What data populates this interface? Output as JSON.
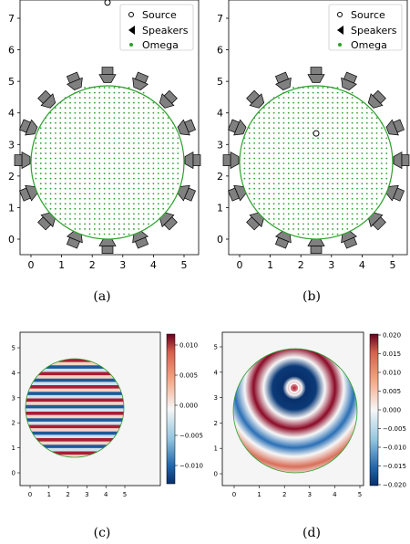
{
  "panels": [
    {
      "label": "(a)",
      "legend": [
        "Source",
        "Speakers",
        "Omega"
      ],
      "x_ticks": [
        "0",
        "1",
        "2",
        "3",
        "4",
        "5"
      ],
      "y_ticks": [
        "0",
        "1",
        "2",
        "3",
        "4",
        "5",
        "6",
        "7"
      ]
    },
    {
      "label": "(b)",
      "legend": [
        "Source",
        "Speakers",
        "Omega"
      ],
      "x_ticks": [
        "0",
        "1",
        "2",
        "3",
        "4",
        "5"
      ],
      "y_ticks": [
        "0",
        "1",
        "2",
        "3",
        "4",
        "5",
        "6",
        "7"
      ]
    },
    {
      "label": "(c)",
      "x_ticks": [
        "0",
        "1",
        "2",
        "3",
        "4",
        "5"
      ],
      "y_ticks": [
        "0",
        "1",
        "2",
        "3",
        "4",
        "5"
      ],
      "colorbar_ticks": [
        "0.010",
        "0.005",
        "0.000",
        "−0.005",
        "−0.010"
      ]
    },
    {
      "label": "(d)",
      "x_ticks": [
        "0",
        "1",
        "2",
        "3",
        "4",
        "5"
      ],
      "y_ticks": [
        "0",
        "1",
        "2",
        "3",
        "4",
        "5"
      ],
      "colorbar_ticks": [
        "0.020",
        "0.015",
        "0.010",
        "0.005",
        "0.000",
        "−0.005",
        "−0.010",
        "−0.015",
        "−0.020"
      ]
    }
  ],
  "chart_data": [
    {
      "type": "scatter",
      "panel": "(a)",
      "xlim": [
        -0.5,
        5.5
      ],
      "ylim": [
        -0.5,
        7.7
      ],
      "domain_center": [
        2.5,
        2.5
      ],
      "domain_radius": 2.5,
      "series": [
        {
          "name": "Source",
          "points": [
            [
              2.5,
              7.5
            ]
          ],
          "color": "#000000"
        },
        {
          "name": "Speakers",
          "count": 16,
          "ring_radius": 2.6,
          "color": "#808080"
        },
        {
          "name": "Omega",
          "grid_spacing": 0.16,
          "color": "#2ca02c"
        }
      ],
      "legend_position": "upper right"
    },
    {
      "type": "scatter",
      "panel": "(b)",
      "xlim": [
        -0.5,
        5.5
      ],
      "ylim": [
        -0.5,
        7.7
      ],
      "domain_center": [
        2.5,
        2.5
      ],
      "domain_radius": 2.5,
      "series": [
        {
          "name": "Source",
          "points": [
            [
              2.5,
              3.35
            ]
          ],
          "color": "#000000"
        },
        {
          "name": "Speakers",
          "count": 16,
          "ring_radius": 2.6,
          "color": "#808080"
        },
        {
          "name": "Omega",
          "grid_spacing": 0.16,
          "color": "#2ca02c"
        }
      ],
      "legend_position": "upper right"
    },
    {
      "type": "heatmap",
      "panel": "(c)",
      "xlim": [
        -0.5,
        5.5
      ],
      "ylim": [
        -0.5,
        5.5
      ],
      "domain_center": [
        2.5,
        2.5
      ],
      "domain_radius": 2.5,
      "field": "plane wave, horizontal stripes",
      "wave_period_y": 0.75,
      "colormap": "RdBu_r",
      "vmin": -0.013,
      "vmax": 0.013
    },
    {
      "type": "heatmap",
      "panel": "(d)",
      "xlim": [
        -0.5,
        5.5
      ],
      "ylim": [
        -0.5,
        5.5
      ],
      "domain_center": [
        2.5,
        2.5
      ],
      "domain_radius": 2.5,
      "field": "point source, concentric rings",
      "source": [
        2.5,
        3.35
      ],
      "wave_period_r": 0.75,
      "colormap": "RdBu_r",
      "vmin": -0.02,
      "vmax": 0.02
    }
  ]
}
